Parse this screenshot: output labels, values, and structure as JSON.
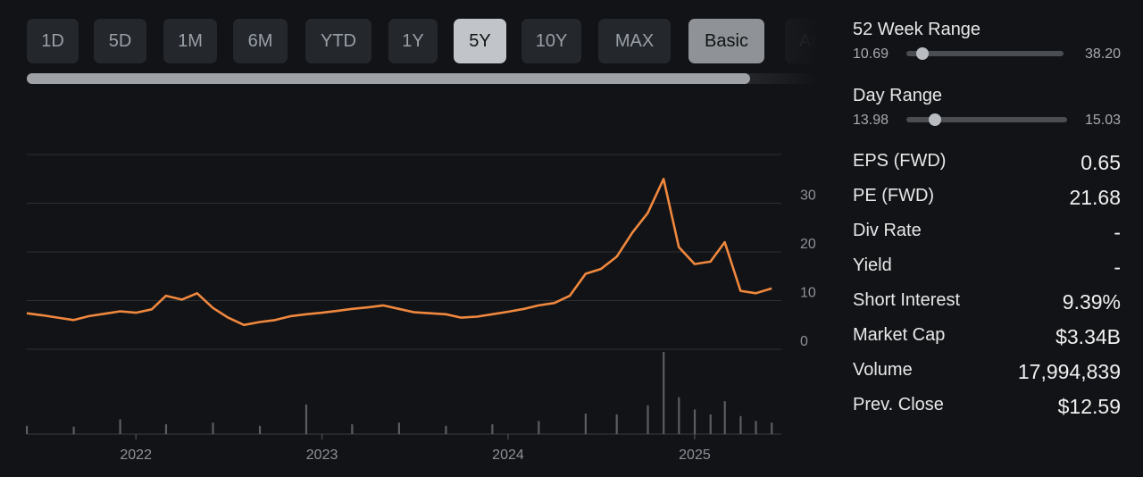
{
  "range_buttons": [
    {
      "label": "1D"
    },
    {
      "label": "5D"
    },
    {
      "label": "1M"
    },
    {
      "label": "6M"
    },
    {
      "label": "YTD"
    },
    {
      "label": "1Y"
    },
    {
      "label": "5Y"
    },
    {
      "label": "10Y"
    },
    {
      "label": "MAX"
    }
  ],
  "active_range": "5Y",
  "view_buttons": [
    {
      "label": "Basic"
    },
    {
      "label": "Ad"
    }
  ],
  "chart_data": {
    "type": "line",
    "series_color": "#f0883e",
    "volume_color": "#5a5d62",
    "x_ticks": [
      "2022",
      "2023",
      "2024",
      "2025"
    ],
    "y_ticks": [
      "0",
      "10",
      "20",
      "30"
    ],
    "ylim": [
      0,
      40
    ],
    "grid": true,
    "price": [
      [
        "2021-06",
        7.4
      ],
      [
        "2021-07",
        7.0
      ],
      [
        "2021-08",
        6.5
      ],
      [
        "2021-09",
        6.0
      ],
      [
        "2021-10",
        6.8
      ],
      [
        "2021-11",
        7.3
      ],
      [
        "2021-12",
        7.8
      ],
      [
        "2022-01",
        7.5
      ],
      [
        "2022-02",
        8.2
      ],
      [
        "2022-03",
        11.0
      ],
      [
        "2022-04",
        10.2
      ],
      [
        "2022-05",
        11.5
      ],
      [
        "2022-06",
        8.5
      ],
      [
        "2022-07",
        6.5
      ],
      [
        "2022-08",
        5.0
      ],
      [
        "2022-09",
        5.6
      ],
      [
        "2022-10",
        6.0
      ],
      [
        "2022-11",
        6.8
      ],
      [
        "2022-12",
        7.2
      ],
      [
        "2023-01",
        7.5
      ],
      [
        "2023-02",
        7.9
      ],
      [
        "2023-03",
        8.3
      ],
      [
        "2023-04",
        8.6
      ],
      [
        "2023-05",
        9.0
      ],
      [
        "2023-06",
        8.3
      ],
      [
        "2023-07",
        7.6
      ],
      [
        "2023-08",
        7.4
      ],
      [
        "2023-09",
        7.2
      ],
      [
        "2023-10",
        6.5
      ],
      [
        "2023-11",
        6.7
      ],
      [
        "2023-12",
        7.2
      ],
      [
        "2024-01",
        7.7
      ],
      [
        "2024-02",
        8.3
      ],
      [
        "2024-03",
        9.0
      ],
      [
        "2024-04",
        9.5
      ],
      [
        "2024-05",
        11.0
      ],
      [
        "2024-06",
        15.5
      ],
      [
        "2024-07",
        16.5
      ],
      [
        "2024-08",
        19.0
      ],
      [
        "2024-09",
        24.0
      ],
      [
        "2024-10",
        28.0
      ],
      [
        "2024-11",
        35.0
      ],
      [
        "2024-12",
        21.0
      ],
      [
        "2025-01",
        17.5
      ],
      [
        "2025-02",
        18.0
      ],
      [
        "2025-03",
        22.0
      ],
      [
        "2025-04",
        12.0
      ],
      [
        "2025-05",
        11.5
      ],
      [
        "2025-06",
        12.5
      ]
    ],
    "volume": [
      [
        "2021-06",
        0.1
      ],
      [
        "2021-09",
        0.09
      ],
      [
        "2021-12",
        0.18
      ],
      [
        "2022-03",
        0.12
      ],
      [
        "2022-06",
        0.14
      ],
      [
        "2022-09",
        0.1
      ],
      [
        "2022-12",
        0.36
      ],
      [
        "2023-03",
        0.12
      ],
      [
        "2023-06",
        0.14
      ],
      [
        "2023-09",
        0.1
      ],
      [
        "2023-12",
        0.12
      ],
      [
        "2024-03",
        0.16
      ],
      [
        "2024-06",
        0.25
      ],
      [
        "2024-08",
        0.24
      ],
      [
        "2024-10",
        0.35
      ],
      [
        "2024-11",
        1.0
      ],
      [
        "2024-12",
        0.45
      ],
      [
        "2025-01",
        0.3
      ],
      [
        "2025-02",
        0.24
      ],
      [
        "2025-03",
        0.4
      ],
      [
        "2025-04",
        0.22
      ],
      [
        "2025-05",
        0.16
      ],
      [
        "2025-06",
        0.14
      ]
    ]
  },
  "stats": {
    "week52": {
      "title": "52 Week Range",
      "low": "10.69",
      "high": "38.20",
      "position": 0.1
    },
    "day": {
      "title": "Day Range",
      "low": "13.98",
      "high": "15.03",
      "position": 0.18
    },
    "rows": [
      {
        "label": "EPS (FWD)",
        "value": "0.65"
      },
      {
        "label": "PE (FWD)",
        "value": "21.68"
      },
      {
        "label": "Div Rate",
        "value": "-"
      },
      {
        "label": "Yield",
        "value": "-"
      },
      {
        "label": "Short Interest",
        "value": "9.39%"
      },
      {
        "label": "Market Cap",
        "value": "$3.34B"
      },
      {
        "label": "Volume",
        "value": "17,994,839"
      },
      {
        "label": "Prev. Close",
        "value": "$12.59"
      }
    ]
  }
}
